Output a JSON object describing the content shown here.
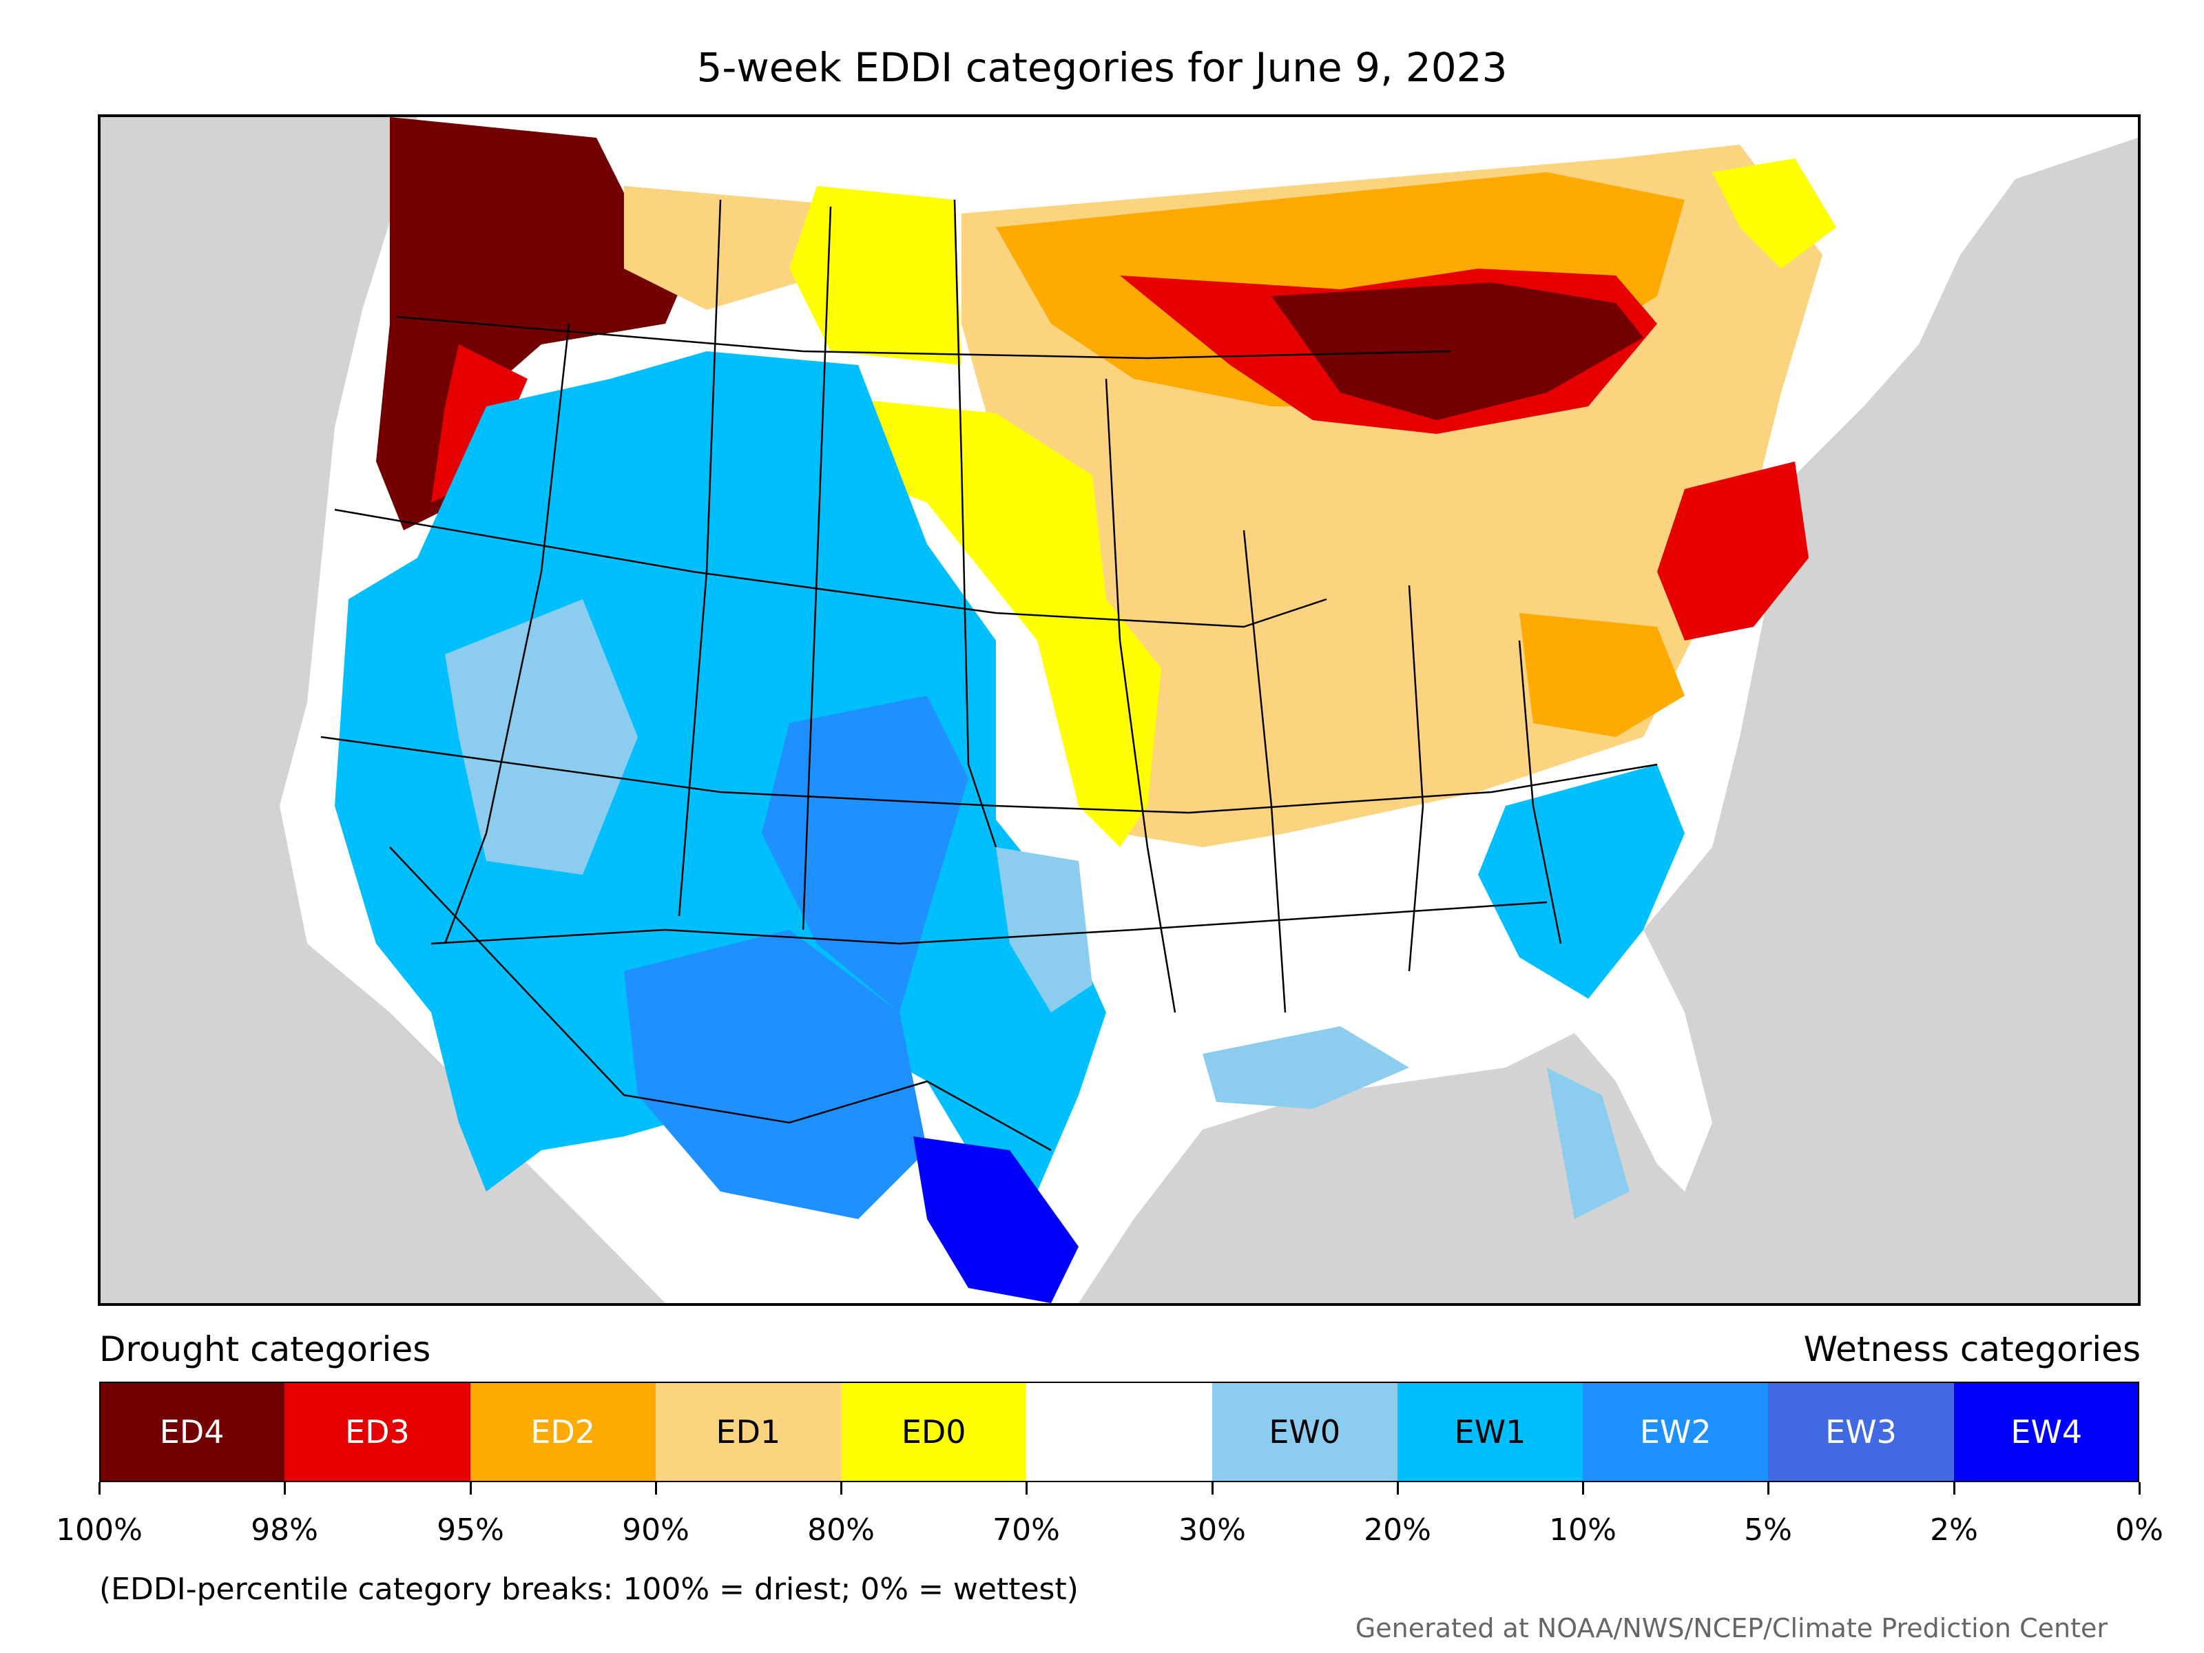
{
  "title": "5-week EDDI categories for June 9, 2023",
  "legend": {
    "drought_label": "Drought categories",
    "wetness_label": "Wetness categories",
    "categories": [
      {
        "label": "ED4",
        "color": "#730000",
        "text_color": "#ffffff"
      },
      {
        "label": "ED3",
        "color": "#e60000",
        "text_color": "#ffffff"
      },
      {
        "label": "ED2",
        "color": "#ffaa00",
        "text_color": "#ffffff"
      },
      {
        "label": "ED1",
        "color": "#fcd37f",
        "text_color": "#000000"
      },
      {
        "label": "ED0",
        "color": "#ffff00",
        "text_color": "#000000"
      },
      {
        "label": "",
        "color": "#ffffff",
        "text_color": "#000000"
      },
      {
        "label": "EW0",
        "color": "#8ccdef",
        "text_color": "#000000"
      },
      {
        "label": "EW1",
        "color": "#00bfff",
        "text_color": "#000000"
      },
      {
        "label": "EW2",
        "color": "#1e90ff",
        "text_color": "#ffffff"
      },
      {
        "label": "EW3",
        "color": "#4169e1",
        "text_color": "#ffffff"
      },
      {
        "label": "EW4",
        "color": "#0000ff",
        "text_color": "#ffffff"
      }
    ],
    "breaks": [
      "100%",
      "98%",
      "95%",
      "90%",
      "80%",
      "70%",
      "30%",
      "20%",
      "10%",
      "5%",
      "2%",
      "0%"
    ]
  },
  "note": "(EDDI-percentile category breaks: 100% = driest; 0% = wettest)",
  "credit": "Generated at NOAA/NWS/NCEP/Climate Prediction Center",
  "colors": {
    "ocean": "#d3d3d3",
    "land": "#ffffff",
    "lakes": "#d3d3d3"
  }
}
